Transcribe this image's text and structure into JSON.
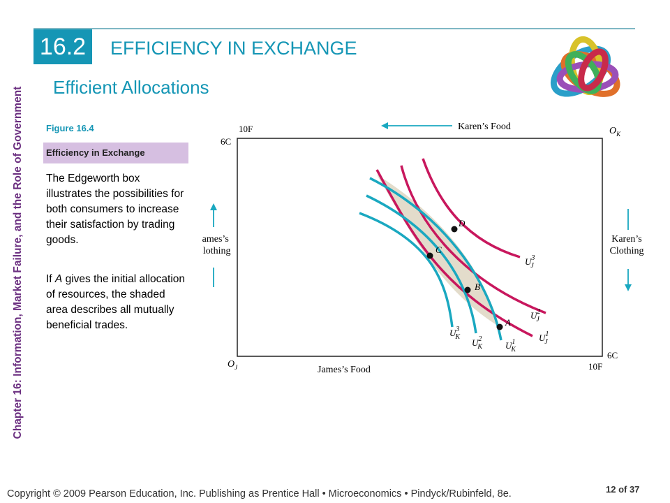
{
  "chapter_label": "Chapter 16: Information, Market Failure, and the Role of Government",
  "section": {
    "number": "16.2",
    "title": "EFFICIENCY IN EXCHANGE"
  },
  "subtitle": "Efficient Allocations",
  "figure": {
    "label": "Figure 16.4",
    "caption": "Efficiency in Exchange",
    "text1": "The Edgeworth box illustrates the possibilities for both consumers to increase their satisfaction by trading goods.",
    "text2_pre": "If ",
    "text2_var": "A",
    "text2_post": " gives the initial allocation of resources, the shaded area describes all mutually beneficial trades."
  },
  "diagram": {
    "karens_food": "Karen’s Food",
    "james_food": "James’s Food",
    "james_clothing": [
      "James’s",
      "Clothing"
    ],
    "karens_clothing": [
      "Karen’s",
      "Clothing"
    ],
    "top_left_food": "10F",
    "top_left_clothing": "6C",
    "bottom_right_food": "10F",
    "bottom_right_clothing": "6C",
    "origin_james": {
      "base": "O",
      "sub": "J"
    },
    "origin_karen": {
      "base": "O",
      "sub": "K"
    },
    "points": [
      "D",
      "C",
      "B",
      "A"
    ],
    "curves": [
      {
        "base": "U",
        "sup": "3",
        "sub": "J"
      },
      {
        "base": "U",
        "sup": "2",
        "sub": "J"
      },
      {
        "base": "U",
        "sup": "1",
        "sub": "J"
      },
      {
        "base": "U",
        "sup": "3",
        "sub": "K"
      },
      {
        "base": "U",
        "sup": "2",
        "sub": "K"
      },
      {
        "base": "U",
        "sup": "1",
        "sub": "K"
      }
    ],
    "colors": {
      "james_curves": "#c8175d",
      "karen_curves": "#1aa8c0",
      "shaded": "#e3dccb"
    }
  },
  "footer": "Copyright © 2009 Pearson Education, Inc. Publishing as Prentice Hall  •  Microeconomics  •  Pindyck/Rubinfeld, 8e.",
  "page": "12 of 37"
}
